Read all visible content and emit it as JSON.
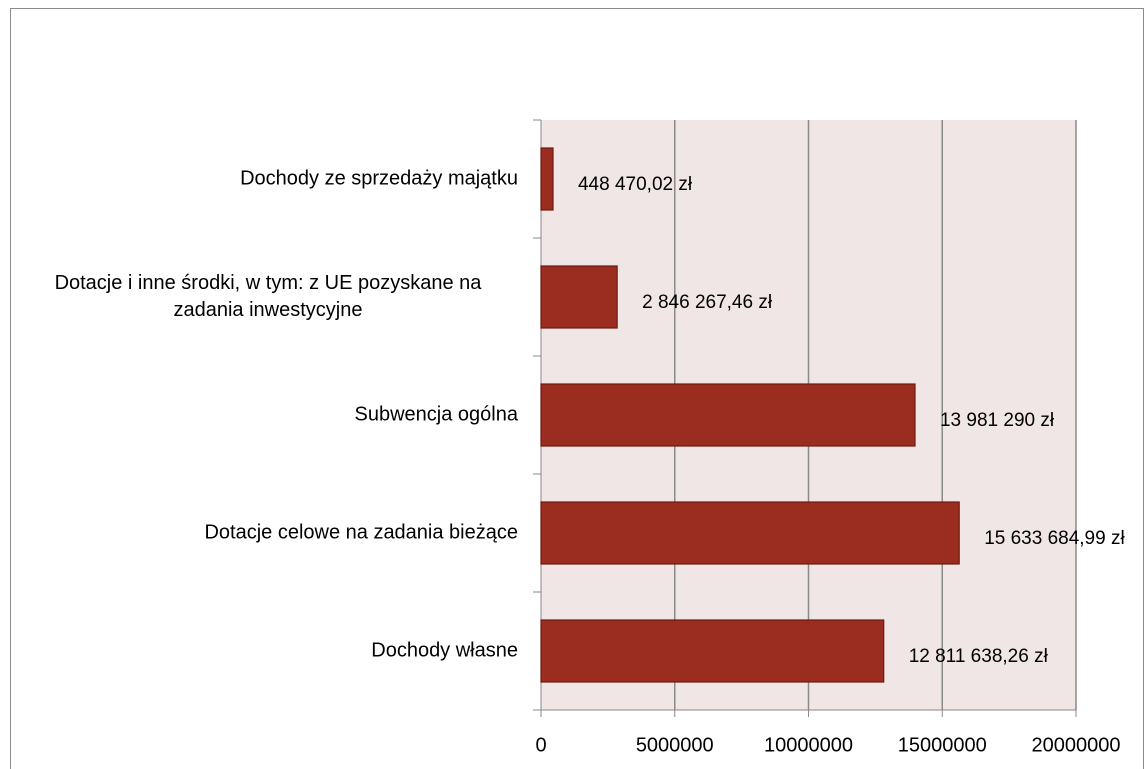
{
  "chart_data": {
    "type": "bar",
    "orientation": "horizontal",
    "categories": [
      "Dochody ze sprzedaży majątku",
      "Dotacje i inne środki, w tym:  z UE pozyskane na zadania inwestycyjne",
      "Subwencja ogólna",
      "Dotacje celowe na zadania bieżące",
      "Dochody własne"
    ],
    "values": [
      448470.02,
      2846267.46,
      13981290,
      15633684.99,
      12811638.26
    ],
    "value_labels": [
      "448 470,02 zł",
      "2 846 267,46 zł",
      "13 981 290 zł",
      "15 633 684,99 zł",
      "12 811 638,26 zł"
    ],
    "color": "#9b2c20",
    "xlim": [
      0,
      20000000
    ],
    "xticks": [
      0,
      5000000,
      10000000,
      15000000,
      20000000
    ],
    "grid": true
  }
}
